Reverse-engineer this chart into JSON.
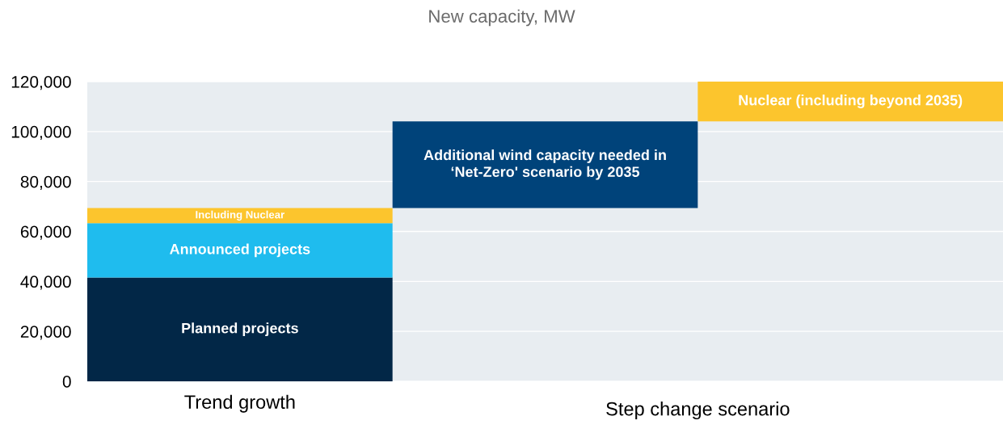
{
  "chart_data": {
    "type": "bar",
    "title": "New capacity, MW",
    "categories": [
      "Trend growth",
      null,
      null
    ],
    "stacked": true,
    "series": [
      {
        "name": "Planned projects",
        "color": "#022747",
        "values": [
          41600,
          null,
          null
        ]
      },
      {
        "name": "Announced projects",
        "color": "#1fbcee",
        "values": [
          21700,
          null,
          null
        ]
      },
      {
        "name": "Including Nuclear",
        "color": "#fcc52d",
        "values": [
          6100,
          null,
          null
        ]
      },
      {
        "name": "Additional wind capacity needed in\n‘Net-Zero' scenario by 2035",
        "color": "#00437a",
        "values": [
          null,
          34700,
          null
        ],
        "base": [
          null,
          69400,
          null
        ]
      },
      {
        "name": "Nuclear (including beyond 2035)",
        "color": "#fcc52d",
        "values": [
          null,
          null,
          15900
        ],
        "base": [
          null,
          null,
          104100
        ]
      }
    ],
    "annotations": [
      "Step change scenario"
    ],
    "ylim": [
      0,
      120000
    ],
    "yticks": [
      0,
      {
        "value": 20000,
        "label": "20,000"
      },
      {
        "value": 40000,
        "label": "40,000"
      },
      {
        "value": 60000,
        "label": "60,000"
      },
      {
        "value": 80000,
        "label": "80,000"
      },
      {
        "value": 100000,
        "label": "100,000"
      },
      {
        "value": 120000,
        "label": "120,000"
      }
    ],
    "grid": "y"
  }
}
